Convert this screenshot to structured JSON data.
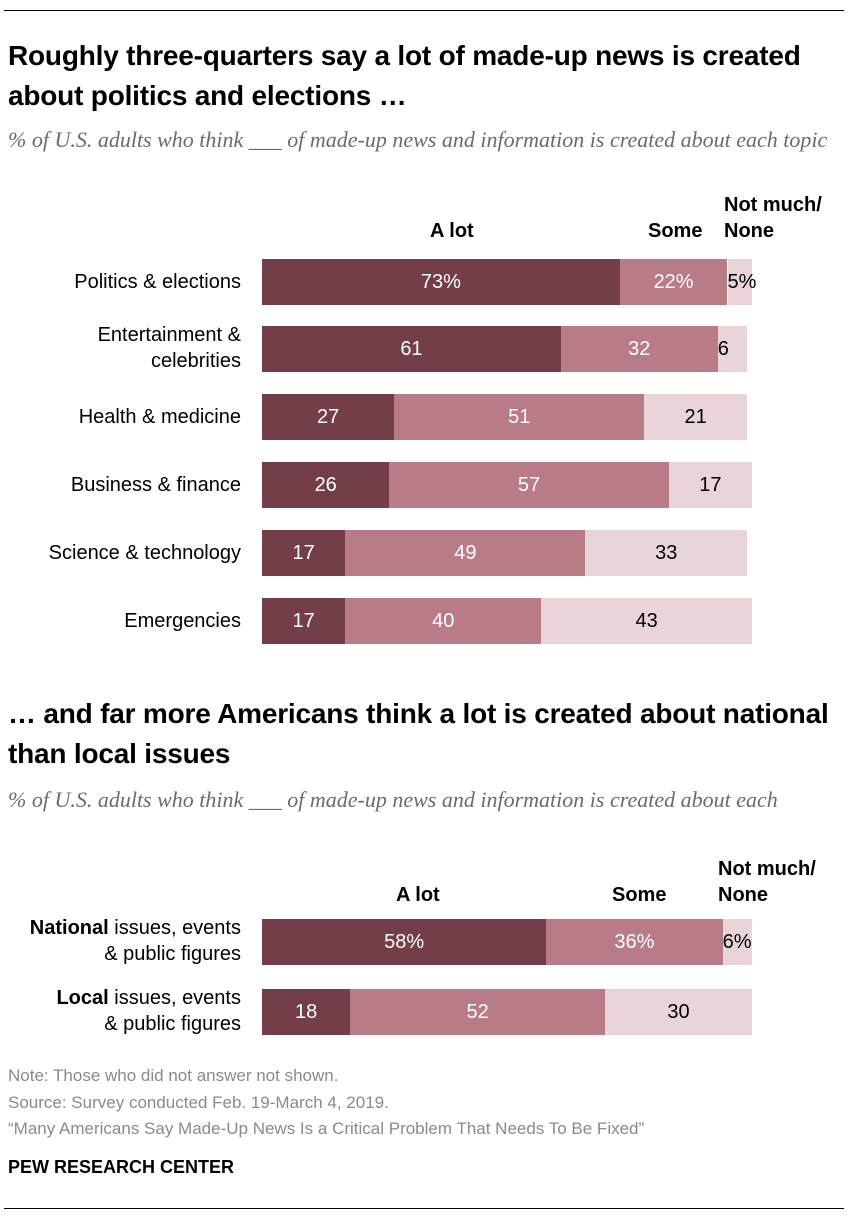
{
  "chart_data": [
    {
      "type": "bar",
      "orientation": "horizontal-stacked",
      "title": "Roughly three-quarters say a lot of made-up news is created about politics and elections …",
      "subtitle": "% of U.S. adults who think ___ of made-up news and information is created about each topic",
      "legend": [
        "A lot",
        "Some",
        "Not much/ None"
      ],
      "categories": [
        "Politics & elections",
        "Entertainment & celebrities",
        "Health & medicine",
        "Business & finance",
        "Science & technology",
        "Emergencies"
      ],
      "series": [
        {
          "name": "A lot",
          "values": [
            73,
            61,
            27,
            26,
            17,
            17
          ]
        },
        {
          "name": "Some",
          "values": [
            22,
            32,
            51,
            57,
            49,
            40
          ]
        },
        {
          "name": "Not much/None",
          "values": [
            5,
            6,
            21,
            17,
            33,
            43
          ]
        }
      ],
      "labels": [
        [
          "73%",
          "22%",
          "5%"
        ],
        [
          "61",
          "32",
          "6"
        ],
        [
          "27",
          "51",
          "21"
        ],
        [
          "26",
          "57",
          "17"
        ],
        [
          "17",
          "49",
          "33"
        ],
        [
          "17",
          "40",
          "43"
        ]
      ],
      "xlim": [
        0,
        100
      ]
    },
    {
      "type": "bar",
      "orientation": "horizontal-stacked",
      "title": "… and far more Americans think a lot is created about national than local issues",
      "subtitle": "% of U.S. adults who think ___ of made-up news and information is created about each",
      "legend": [
        "A lot",
        "Some",
        "Not much/ None"
      ],
      "categories": [
        "National issues, events & public figures",
        "Local issues, events & public figures"
      ],
      "category_parts": [
        {
          "bold": "National",
          "rest1": " issues, events",
          "rest2": "& public figures"
        },
        {
          "bold": "Local",
          "rest1": " issues, events",
          "rest2": "& public figures"
        }
      ],
      "series": [
        {
          "name": "A lot",
          "values": [
            58,
            18
          ]
        },
        {
          "name": "Some",
          "values": [
            36,
            52
          ]
        },
        {
          "name": "Not much/None",
          "values": [
            6,
            30
          ]
        }
      ],
      "labels": [
        [
          "58%",
          "36%",
          "6%"
        ],
        [
          "18",
          "52",
          "30"
        ]
      ],
      "xlim": [
        0,
        100
      ]
    }
  ],
  "colors": {
    "a_lot": "#733e48",
    "some": "#b97c86",
    "not_much": "#e9d4d8",
    "label_dark": "#000000",
    "label_light": "#ffffff"
  },
  "header": {
    "alot": "A lot",
    "some": "Some",
    "notmuch1": "Not much/",
    "notmuch2": "None"
  },
  "footer": {
    "note": "Note: Those who did not answer not shown.",
    "source": "Source: Survey conducted Feb. 19-March 4, 2019.",
    "report": "“Many Americans Say Made-Up News Is a Critical Problem That Needs To Be Fixed”",
    "brand": "PEW RESEARCH CENTER"
  }
}
